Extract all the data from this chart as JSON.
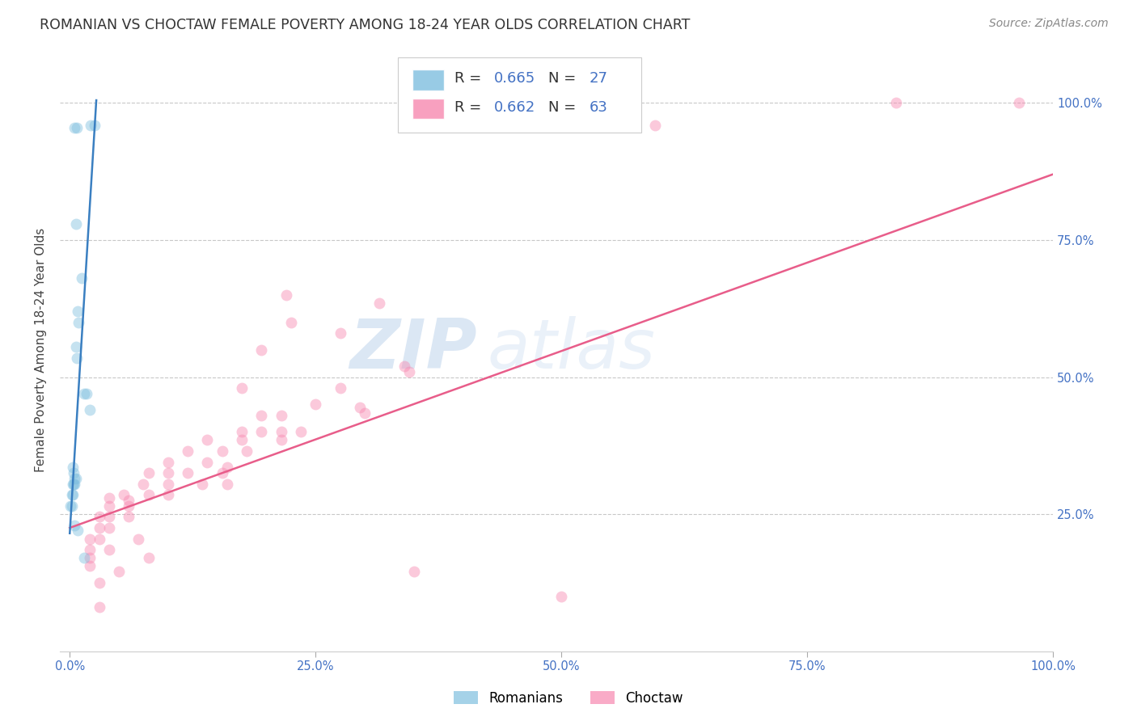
{
  "title": "ROMANIAN VS CHOCTAW FEMALE POVERTY AMONG 18-24 YEAR OLDS CORRELATION CHART",
  "source": "Source: ZipAtlas.com",
  "ylabel": "Female Poverty Among 18-24 Year Olds",
  "background_color": "#ffffff",
  "watermark_zip": "ZIP",
  "watermark_atlas": "atlas",
  "legend_ro_R": 0.665,
  "legend_ro_N": 27,
  "legend_ch_R": 0.662,
  "legend_ch_N": 63,
  "romanian_color": "#7fbfdf",
  "choctaw_color": "#f788b0",
  "romanian_line_color": "#3a7fc1",
  "choctaw_line_color": "#e85d8a",
  "romanian_scatter": [
    [
      0.005,
      0.955
    ],
    [
      0.007,
      0.955
    ],
    [
      0.021,
      0.96
    ],
    [
      0.025,
      0.96
    ],
    [
      0.006,
      0.78
    ],
    [
      0.012,
      0.68
    ],
    [
      0.008,
      0.62
    ],
    [
      0.009,
      0.6
    ],
    [
      0.006,
      0.555
    ],
    [
      0.007,
      0.535
    ],
    [
      0.015,
      0.47
    ],
    [
      0.017,
      0.47
    ],
    [
      0.02,
      0.44
    ],
    [
      0.003,
      0.335
    ],
    [
      0.004,
      0.325
    ],
    [
      0.005,
      0.315
    ],
    [
      0.006,
      0.315
    ],
    [
      0.003,
      0.305
    ],
    [
      0.004,
      0.305
    ],
    [
      0.005,
      0.305
    ],
    [
      0.002,
      0.285
    ],
    [
      0.003,
      0.285
    ],
    [
      0.001,
      0.265
    ],
    [
      0.002,
      0.265
    ],
    [
      0.005,
      0.23
    ],
    [
      0.008,
      0.22
    ],
    [
      0.015,
      0.17
    ]
  ],
  "choctaw_scatter": [
    [
      0.84,
      1.0
    ],
    [
      0.965,
      1.0
    ],
    [
      0.595,
      0.96
    ],
    [
      0.22,
      0.65
    ],
    [
      0.315,
      0.635
    ],
    [
      0.225,
      0.6
    ],
    [
      0.275,
      0.58
    ],
    [
      0.195,
      0.55
    ],
    [
      0.34,
      0.52
    ],
    [
      0.345,
      0.51
    ],
    [
      0.175,
      0.48
    ],
    [
      0.275,
      0.48
    ],
    [
      0.25,
      0.45
    ],
    [
      0.295,
      0.445
    ],
    [
      0.3,
      0.435
    ],
    [
      0.195,
      0.43
    ],
    [
      0.215,
      0.43
    ],
    [
      0.175,
      0.4
    ],
    [
      0.195,
      0.4
    ],
    [
      0.215,
      0.4
    ],
    [
      0.235,
      0.4
    ],
    [
      0.14,
      0.385
    ],
    [
      0.175,
      0.385
    ],
    [
      0.215,
      0.385
    ],
    [
      0.12,
      0.365
    ],
    [
      0.155,
      0.365
    ],
    [
      0.18,
      0.365
    ],
    [
      0.1,
      0.345
    ],
    [
      0.14,
      0.345
    ],
    [
      0.16,
      0.335
    ],
    [
      0.08,
      0.325
    ],
    [
      0.1,
      0.325
    ],
    [
      0.12,
      0.325
    ],
    [
      0.155,
      0.325
    ],
    [
      0.075,
      0.305
    ],
    [
      0.1,
      0.305
    ],
    [
      0.135,
      0.305
    ],
    [
      0.16,
      0.305
    ],
    [
      0.055,
      0.285
    ],
    [
      0.08,
      0.285
    ],
    [
      0.1,
      0.285
    ],
    [
      0.04,
      0.28
    ],
    [
      0.06,
      0.275
    ],
    [
      0.04,
      0.265
    ],
    [
      0.06,
      0.265
    ],
    [
      0.03,
      0.245
    ],
    [
      0.04,
      0.245
    ],
    [
      0.06,
      0.245
    ],
    [
      0.03,
      0.225
    ],
    [
      0.04,
      0.225
    ],
    [
      0.02,
      0.205
    ],
    [
      0.03,
      0.205
    ],
    [
      0.07,
      0.205
    ],
    [
      0.02,
      0.185
    ],
    [
      0.04,
      0.185
    ],
    [
      0.02,
      0.17
    ],
    [
      0.08,
      0.17
    ],
    [
      0.02,
      0.155
    ],
    [
      0.05,
      0.145
    ],
    [
      0.35,
      0.145
    ],
    [
      0.03,
      0.125
    ],
    [
      0.5,
      0.1
    ],
    [
      0.03,
      0.08
    ]
  ],
  "romanian_line": [
    [
      0.0,
      0.215
    ],
    [
      0.027,
      1.005
    ]
  ],
  "choctaw_line": [
    [
      0.0,
      0.225
    ],
    [
      1.0,
      0.87
    ]
  ],
  "xlim": [
    -0.01,
    1.0
  ],
  "ylim": [
    0.0,
    1.1
  ],
  "xticks": [
    0.0,
    0.25,
    0.5,
    0.75,
    1.0
  ],
  "yticks": [
    0.25,
    0.5,
    0.75,
    1.0
  ],
  "xticklabels": [
    "0.0%",
    "25.0%",
    "50.0%",
    "75.0%",
    "100.0%"
  ],
  "right_yticklabels": [
    "25.0%",
    "50.0%",
    "75.0%",
    "100.0%"
  ],
  "marker_size": 100,
  "marker_alpha": 0.45,
  "line_width": 1.8,
  "grid_color": "#c8c8c8",
  "title_fontsize": 12.5,
  "axis_label_fontsize": 11,
  "tick_fontsize": 10.5,
  "source_fontsize": 10,
  "legend_fontsize": 13
}
